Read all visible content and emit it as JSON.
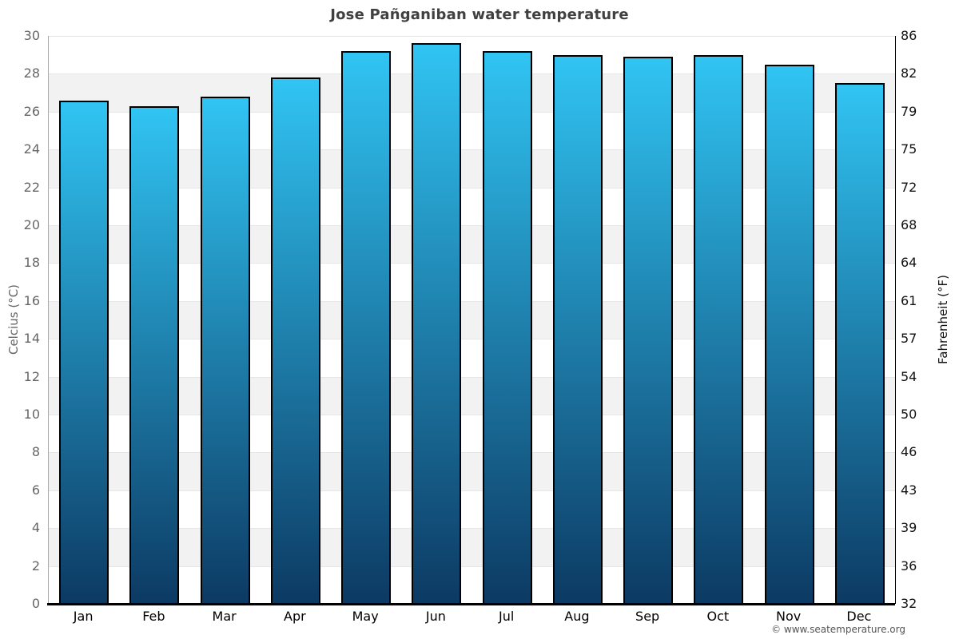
{
  "chart_data": {
    "type": "bar",
    "title": "Jose Pañganiban water temperature",
    "categories": [
      "Jan",
      "Feb",
      "Mar",
      "Apr",
      "May",
      "Jun",
      "Jul",
      "Aug",
      "Sep",
      "Oct",
      "Nov",
      "Dec"
    ],
    "values": [
      26.6,
      26.3,
      26.8,
      27.8,
      29.2,
      29.6,
      29.2,
      29.0,
      28.9,
      29.0,
      28.5,
      27.5
    ],
    "unit": "°C",
    "xlabel": "",
    "ylabel_left": "Celcius (°C)",
    "ylabel_right": "Fahrenheit (°F)",
    "ylim_celsius": [
      0,
      30
    ],
    "celsius_ticks": [
      30,
      28,
      26,
      24,
      22,
      20,
      18,
      16,
      14,
      12,
      10,
      8,
      6,
      4,
      2,
      0
    ],
    "fahrenheit_ticks": [
      86,
      82,
      79,
      75,
      72,
      68,
      64,
      61,
      57,
      54,
      50,
      46,
      43,
      39,
      36,
      32
    ],
    "grid": "horizontal gridlines with alternating shaded bands",
    "legend": "none",
    "colors": {
      "bar_gradient_top": "#31c4f3",
      "bar_gradient_bottom": "#0c3a63",
      "bar_border": "#000000",
      "band_fill": "#f2f2f2",
      "gridline": "#e6e6e6",
      "title_text": "#404040",
      "left_axis_text": "#666666",
      "right_axis_text": "#111111",
      "x_axis_line": "#000000"
    }
  },
  "footer": {
    "copyright": "© www.seatemperature.org"
  }
}
